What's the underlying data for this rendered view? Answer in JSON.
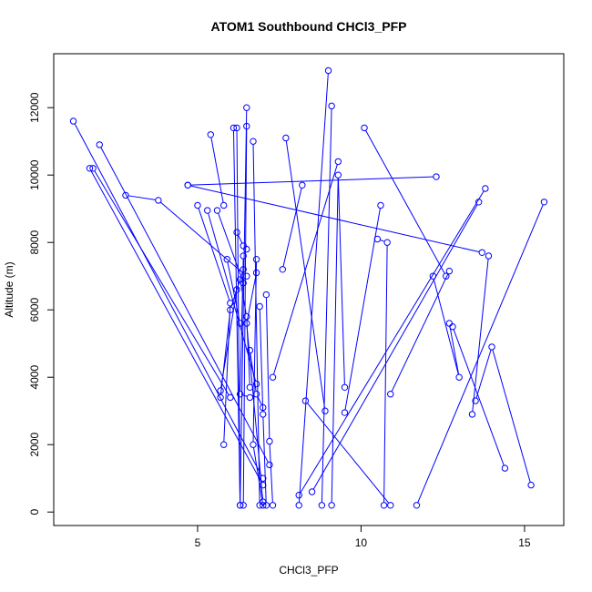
{
  "chart_data": {
    "type": "line",
    "title": "ATOM1 Southbound CHCl3_PFP",
    "xlabel": "CHCl3_PFP",
    "ylabel": "Altitude (m)",
    "xlim": [
      0.6,
      16.2
    ],
    "ylim": [
      -400,
      13600
    ],
    "x_ticks": [
      5,
      10,
      15
    ],
    "y_ticks": [
      0,
      2000,
      4000,
      6000,
      8000,
      10000,
      12000
    ],
    "x_tick_labels": [
      "5",
      "10",
      "15"
    ],
    "y_tick_labels": [
      "0",
      "2000",
      "4000",
      "6000",
      "8000",
      "10000",
      "12000"
    ],
    "grid": false,
    "legend": "none",
    "series_color": "#0000ff",
    "series": [
      {
        "points": [
          [
            1.2,
            11600
          ],
          [
            7.0,
            1000
          ]
        ]
      },
      {
        "points": [
          [
            1.7,
            10200
          ],
          [
            7.0,
            800
          ]
        ]
      },
      {
        "points": [
          [
            1.8,
            10200
          ],
          [
            6.0,
            3400
          ]
        ]
      },
      {
        "points": [
          [
            2.0,
            10900
          ],
          [
            7.2,
            1400
          ]
        ]
      },
      {
        "points": [
          [
            2.8,
            9400
          ],
          [
            3.8,
            9250
          ],
          [
            6.5,
            7000
          ]
        ]
      },
      {
        "points": [
          [
            4.7,
            9700
          ],
          [
            12.3,
            9950
          ]
        ]
      },
      {
        "points": [
          [
            4.7,
            9700
          ],
          [
            13.7,
            7700
          ]
        ]
      },
      {
        "points": [
          [
            5.0,
            9100
          ],
          [
            6.0,
            6200
          ],
          [
            5.8,
            2000
          ]
        ]
      },
      {
        "points": [
          [
            5.3,
            8950
          ],
          [
            6.8,
            3800
          ]
        ]
      },
      {
        "points": [
          [
            5.6,
            8950
          ],
          [
            6.4,
            6800
          ]
        ]
      },
      {
        "points": [
          [
            5.4,
            11200
          ],
          [
            5.8,
            9100
          ]
        ]
      },
      {
        "points": [
          [
            5.9,
            7500
          ],
          [
            6.3,
            5600
          ]
        ]
      },
      {
        "points": [
          [
            5.7,
            3400
          ],
          [
            6.0,
            6000
          ],
          [
            6.4,
            7200
          ]
        ]
      },
      {
        "points": [
          [
            5.7,
            3600
          ],
          [
            6.2,
            6600
          ]
        ]
      },
      {
        "points": [
          [
            6.1,
            11400
          ],
          [
            6.3,
            200
          ],
          [
            6.2,
            11400
          ]
        ]
      },
      {
        "points": [
          [
            6.5,
            12000
          ],
          [
            6.3,
            200
          ]
        ]
      },
      {
        "points": [
          [
            6.5,
            11450
          ],
          [
            6.4,
            200
          ]
        ]
      },
      {
        "points": [
          [
            6.7,
            11000
          ],
          [
            6.9,
            200
          ]
        ]
      },
      {
        "points": [
          [
            6.2,
            8300
          ],
          [
            6.4,
            7900
          ],
          [
            6.5,
            7800
          ]
        ]
      },
      {
        "points": [
          [
            6.4,
            7600
          ],
          [
            6.3,
            3500
          ],
          [
            6.6,
            3400
          ]
        ]
      },
      {
        "points": [
          [
            6.3,
            6900
          ],
          [
            6.5,
            5800
          ],
          [
            6.6,
            3700
          ]
        ]
      },
      {
        "points": [
          [
            6.6,
            4800
          ],
          [
            6.8,
            3500
          ],
          [
            7.0,
            3100
          ]
        ]
      },
      {
        "points": [
          [
            6.8,
            7500
          ],
          [
            6.7,
            2000
          ],
          [
            7.0,
            200
          ]
        ]
      },
      {
        "points": [
          [
            6.9,
            6100
          ],
          [
            7.0,
            2900
          ],
          [
            7.1,
            200
          ]
        ]
      },
      {
        "points": [
          [
            7.1,
            6450
          ],
          [
            7.2,
            2100
          ],
          [
            7.3,
            200
          ]
        ]
      },
      {
        "points": [
          [
            6.8,
            7100
          ],
          [
            6.5,
            5600
          ],
          [
            7.0,
            300
          ]
        ]
      },
      {
        "points": [
          [
            7.7,
            11100
          ],
          [
            8.9,
            3000
          ]
        ]
      },
      {
        "points": [
          [
            7.6,
            7200
          ],
          [
            8.2,
            9700
          ]
        ]
      },
      {
        "points": [
          [
            7.3,
            4000
          ],
          [
            9.3,
            10400
          ]
        ]
      },
      {
        "points": [
          [
            8.3,
            3300
          ],
          [
            10.9,
            200
          ]
        ]
      },
      {
        "points": [
          [
            9.0,
            13100
          ],
          [
            8.1,
            200
          ]
        ]
      },
      {
        "points": [
          [
            9.1,
            12050
          ],
          [
            8.8,
            200
          ]
        ]
      },
      {
        "points": [
          [
            9.5,
            3700
          ],
          [
            9.3,
            10000
          ],
          [
            9.1,
            200
          ]
        ]
      },
      {
        "points": [
          [
            9.5,
            2950
          ],
          [
            10.6,
            9100
          ]
        ]
      },
      {
        "points": [
          [
            10.1,
            11400
          ],
          [
            12.6,
            7000
          ]
        ]
      },
      {
        "points": [
          [
            10.5,
            8100
          ],
          [
            10.8,
            8000
          ],
          [
            10.7,
            200
          ]
        ]
      },
      {
        "points": [
          [
            10.9,
            3500
          ],
          [
            12.7,
            7150
          ]
        ]
      },
      {
        "points": [
          [
            8.1,
            500
          ],
          [
            13.8,
            9600
          ]
        ]
      },
      {
        "points": [
          [
            8.5,
            600
          ],
          [
            13.6,
            9200
          ]
        ]
      },
      {
        "points": [
          [
            11.7,
            200
          ],
          [
            15.6,
            9200
          ]
        ]
      },
      {
        "points": [
          [
            12.7,
            5600
          ],
          [
            13.0,
            4000
          ],
          [
            12.2,
            7000
          ]
        ]
      },
      {
        "points": [
          [
            12.8,
            5500
          ],
          [
            14.4,
            1300
          ]
        ]
      },
      {
        "points": [
          [
            13.5,
            3300
          ],
          [
            14.0,
            4900
          ],
          [
            15.2,
            800
          ]
        ]
      },
      {
        "points": [
          [
            13.4,
            2900
          ],
          [
            13.9,
            7600
          ]
        ]
      }
    ]
  }
}
